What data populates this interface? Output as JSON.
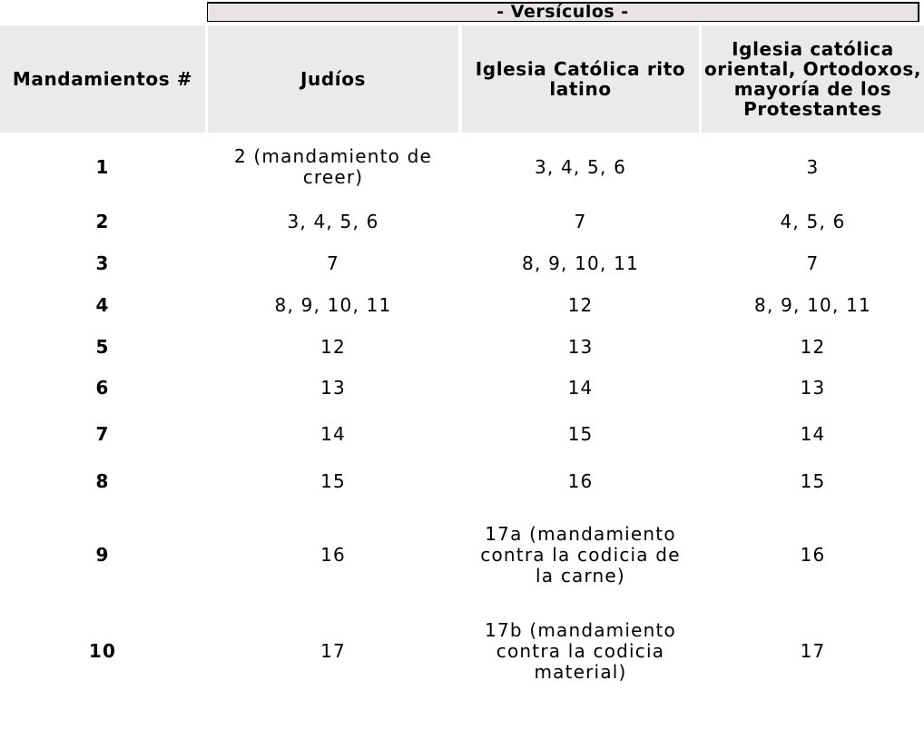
{
  "super_header": "- Versículos -",
  "headers": [
    "Mandamientos #",
    "Judíos",
    "Iglesia Católica rito latino",
    "Iglesia católica oriental, Ortodoxos, mayoría de los Protestantes"
  ],
  "rows": [
    [
      "1",
      "2 (mandamiento de creer)",
      "3, 4, 5, 6",
      "3"
    ],
    [
      "2",
      "3, 4, 5, 6",
      "7",
      "4, 5, 6"
    ],
    [
      "3",
      "7",
      "8, 9, 10, 11",
      "7"
    ],
    [
      "4",
      "8, 9, 10, 11",
      "12",
      "8, 9, 10, 11"
    ],
    [
      "5",
      "12",
      "13",
      "12"
    ],
    [
      "6",
      "13",
      "14",
      "13"
    ],
    [
      "7",
      "14",
      "15",
      "14"
    ],
    [
      "8",
      "15",
      "16",
      "15"
    ],
    [
      "9",
      "16",
      "17a (mandamiento contra la codicia de la carne)",
      "16"
    ],
    [
      "10",
      "17",
      "17b (mandamiento contra la codicia material)",
      "17"
    ]
  ]
}
